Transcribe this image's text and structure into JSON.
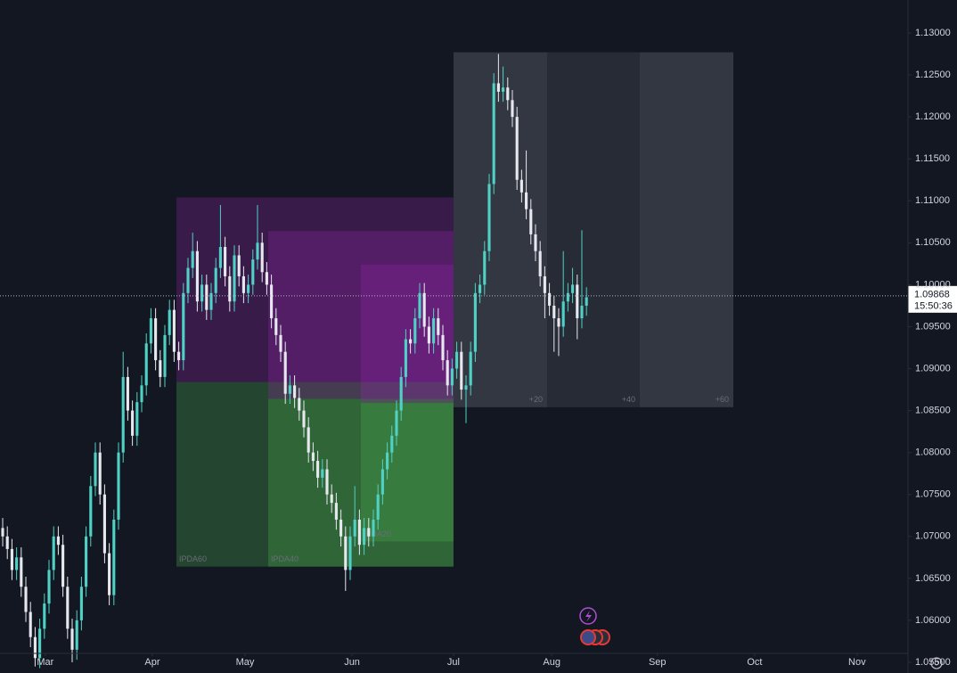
{
  "chart_data": {
    "type": "candlestick",
    "up_color": "#4fd1c5",
    "down_color": "#e6e8ee",
    "ylim": [
      1.05606,
      1.13393
    ],
    "xlim": [
      -0.58,
      195.2
    ],
    "yticks": [
      {
        "value": 1.13,
        "label": "1.13000"
      },
      {
        "value": 1.125,
        "label": "1.12500"
      },
      {
        "value": 1.12,
        "label": "1.12000"
      },
      {
        "value": 1.115,
        "label": "1.11500"
      },
      {
        "value": 1.11,
        "label": "1.11000"
      },
      {
        "value": 1.105,
        "label": "1.10500"
      },
      {
        "value": 1.1,
        "label": "1.10000"
      },
      {
        "value": 1.095,
        "label": "1.09500"
      },
      {
        "value": 1.09,
        "label": "1.09000"
      },
      {
        "value": 1.085,
        "label": "1.08500"
      },
      {
        "value": 1.08,
        "label": "1.08000"
      },
      {
        "value": 1.075,
        "label": "1.07500"
      },
      {
        "value": 1.07,
        "label": "1.07000"
      },
      {
        "value": 1.065,
        "label": "1.06500"
      },
      {
        "value": 1.06,
        "label": "1.06000"
      },
      {
        "value": 1.055,
        "label": "1.05500"
      }
    ],
    "xticks": [
      {
        "value": 9.2,
        "label": "Mar"
      },
      {
        "value": 32.3,
        "label": "Apr"
      },
      {
        "value": 52.3,
        "label": "May"
      },
      {
        "value": 75.4,
        "label": "Jun"
      },
      {
        "value": 97.3,
        "label": "Jul"
      },
      {
        "value": 118.5,
        "label": "Aug"
      },
      {
        "value": 141.3,
        "label": "Sep"
      },
      {
        "value": 162.3,
        "label": "Oct"
      },
      {
        "value": 184.4,
        "label": "Nov"
      }
    ],
    "last_price": 1.09868,
    "countdown": "15:50:36",
    "zones": [
      {
        "label": "IPDA60",
        "high": 1.1104,
        "low": 1.0664,
        "start": 37.5,
        "end": 97.3
      },
      {
        "label": "IPDA40",
        "high": 1.1064,
        "low": 1.0664,
        "start": 57.3,
        "end": 97.3
      },
      {
        "label": "IPDA20",
        "high": 1.1024,
        "low": 1.0694,
        "start": 77.3,
        "end": 97.3
      }
    ],
    "projection": {
      "high": 1.1277,
      "low": 1.0854,
      "segments": [
        {
          "label": "+20",
          "start": 97.3,
          "end": 117.5
        },
        {
          "label": "+40",
          "start": 117.5,
          "end": 137.5
        },
        {
          "label": "+60",
          "start": 137.5,
          "end": 157.7
        }
      ]
    },
    "ohlc": [
      [
        1.071,
        1.0722,
        1.0688,
        1.07
      ],
      [
        1.07,
        1.0712,
        1.0673,
        1.0685
      ],
      [
        1.0685,
        1.0697,
        1.0648,
        1.066
      ],
      [
        1.066,
        1.0687,
        1.0648,
        1.0675
      ],
      [
        1.0675,
        1.0687,
        1.0628,
        1.064
      ],
      [
        1.064,
        1.0652,
        1.0598,
        1.061
      ],
      [
        1.061,
        1.0622,
        1.0568,
        1.058
      ],
      [
        1.058,
        1.0592,
        1.0545,
        1.0555
      ],
      [
        1.0555,
        1.0602,
        1.0543,
        1.059
      ],
      [
        1.059,
        1.0632,
        1.0578,
        1.062
      ],
      [
        1.062,
        1.0672,
        1.0608,
        1.066
      ],
      [
        1.066,
        1.0712,
        1.0648,
        1.07
      ],
      [
        1.07,
        1.0712,
        1.0678,
        1.069
      ],
      [
        1.069,
        1.0702,
        1.0628,
        1.064
      ],
      [
        1.064,
        1.0652,
        1.0578,
        1.059
      ],
      [
        1.059,
        1.0602,
        1.055,
        1.0565
      ],
      [
        1.0565,
        1.0612,
        1.0553,
        1.06
      ],
      [
        1.06,
        1.0652,
        1.0588,
        1.064
      ],
      [
        1.064,
        1.0712,
        1.0628,
        1.07
      ],
      [
        1.07,
        1.0772,
        1.0688,
        1.076
      ],
      [
        1.076,
        1.0812,
        1.0748,
        1.08
      ],
      [
        1.08,
        1.0812,
        1.0738,
        1.075
      ],
      [
        1.075,
        1.0762,
        1.0668,
        1.068
      ],
      [
        1.068,
        1.0692,
        1.0618,
        1.063
      ],
      [
        1.063,
        1.0732,
        1.0618,
        1.072
      ],
      [
        1.072,
        1.0812,
        1.0708,
        1.08
      ],
      [
        1.08,
        1.092,
        1.0788,
        1.089
      ],
      [
        1.089,
        1.0902,
        1.0838,
        1.085
      ],
      [
        1.085,
        1.0862,
        1.0808,
        1.082
      ],
      [
        1.082,
        1.0872,
        1.0808,
        1.086
      ],
      [
        1.086,
        1.0892,
        1.0848,
        1.088
      ],
      [
        1.088,
        1.0942,
        1.0868,
        1.093
      ],
      [
        1.093,
        1.0972,
        1.0918,
        1.096
      ],
      [
        1.096,
        1.0972,
        1.0898,
        1.091
      ],
      [
        1.091,
        1.0922,
        1.0878,
        1.089
      ],
      [
        1.089,
        1.0952,
        1.0878,
        1.094
      ],
      [
        1.094,
        1.0982,
        1.0928,
        1.097
      ],
      [
        1.097,
        1.0982,
        1.0908,
        1.092
      ],
      [
        1.092,
        1.0932,
        1.0898,
        1.091
      ],
      [
        1.091,
        1.1002,
        1.0898,
        1.099
      ],
      [
        1.099,
        1.1032,
        1.0978,
        1.102
      ],
      [
        1.102,
        1.1062,
        1.1008,
        1.104
      ],
      [
        1.104,
        1.1052,
        1.0968,
        1.098
      ],
      [
        1.098,
        1.1012,
        1.0968,
        1.1
      ],
      [
        1.1,
        1.1012,
        1.0958,
        1.097
      ],
      [
        1.097,
        1.1002,
        1.0958,
        1.099
      ],
      [
        1.099,
        1.1032,
        1.0978,
        1.102
      ],
      [
        1.102,
        1.1095,
        1.1008,
        1.1045
      ],
      [
        1.1045,
        1.1057,
        1.0998,
        1.101
      ],
      [
        1.101,
        1.1022,
        1.0968,
        1.098
      ],
      [
        1.098,
        1.1047,
        1.0968,
        1.1035
      ],
      [
        1.1035,
        1.1047,
        1.0998,
        1.101
      ],
      [
        1.101,
        1.1022,
        1.0978,
        1.099
      ],
      [
        1.099,
        1.1012,
        1.0978,
        1.1
      ],
      [
        1.1,
        1.1042,
        1.0988,
        1.103
      ],
      [
        1.103,
        1.1095,
        1.1018,
        1.105
      ],
      [
        1.105,
        1.1062,
        1.1003,
        1.1015
      ],
      [
        1.1015,
        1.1027,
        1.0988,
        1.1
      ],
      [
        1.1,
        1.1012,
        1.0948,
        1.096
      ],
      [
        1.096,
        1.0972,
        1.0928,
        1.094
      ],
      [
        1.094,
        1.0952,
        1.0908,
        1.092
      ],
      [
        1.092,
        1.0932,
        1.0858,
        1.087
      ],
      [
        1.087,
        1.0892,
        1.0858,
        1.088
      ],
      [
        1.088,
        1.0892,
        1.0853,
        1.0865
      ],
      [
        1.0865,
        1.0877,
        1.0838,
        1.085
      ],
      [
        1.085,
        1.0862,
        1.0818,
        1.083
      ],
      [
        1.083,
        1.0842,
        1.0788,
        1.08
      ],
      [
        1.08,
        1.0812,
        1.0778,
        1.079
      ],
      [
        1.079,
        1.0802,
        1.0758,
        1.077
      ],
      [
        1.077,
        1.0792,
        1.0758,
        1.078
      ],
      [
        1.078,
        1.0792,
        1.0738,
        1.075
      ],
      [
        1.075,
        1.0762,
        1.0728,
        1.074
      ],
      [
        1.074,
        1.0752,
        1.0708,
        1.072
      ],
      [
        1.072,
        1.0732,
        1.0688,
        1.07
      ],
      [
        1.07,
        1.0712,
        1.0635,
        1.066
      ],
      [
        1.066,
        1.0712,
        1.0648,
        1.07
      ],
      [
        1.07,
        1.076,
        1.0688,
        1.072
      ],
      [
        1.072,
        1.0732,
        1.0678,
        1.069
      ],
      [
        1.069,
        1.0722,
        1.0678,
        1.071
      ],
      [
        1.071,
        1.0722,
        1.0688,
        1.07
      ],
      [
        1.07,
        1.0732,
        1.0688,
        1.072
      ],
      [
        1.072,
        1.0762,
        1.0708,
        1.075
      ],
      [
        1.075,
        1.0792,
        1.0738,
        1.078
      ],
      [
        1.078,
        1.0812,
        1.0768,
        1.08
      ],
      [
        1.08,
        1.0832,
        1.0788,
        1.082
      ],
      [
        1.082,
        1.0862,
        1.0808,
        1.085
      ],
      [
        1.085,
        1.0902,
        1.0838,
        1.089
      ],
      [
        1.089,
        1.0947,
        1.0878,
        1.0935
      ],
      [
        1.0935,
        1.0947,
        1.0918,
        1.093
      ],
      [
        1.093,
        1.0972,
        1.0918,
        1.096
      ],
      [
        1.096,
        1.1002,
        1.0948,
        1.099
      ],
      [
        1.099,
        1.1002,
        1.0938,
        1.095
      ],
      [
        1.095,
        1.0962,
        1.0918,
        1.093
      ],
      [
        1.093,
        1.0972,
        1.0918,
        1.096
      ],
      [
        1.096,
        1.0972,
        1.0928,
        1.094
      ],
      [
        1.094,
        1.0952,
        1.0898,
        1.091
      ],
      [
        1.091,
        1.0922,
        1.0868,
        1.088
      ],
      [
        1.088,
        1.0912,
        1.0868,
        1.09
      ],
      [
        1.09,
        1.0932,
        1.0888,
        1.092
      ],
      [
        1.092,
        1.0932,
        1.0863,
        1.0875
      ],
      [
        1.0875,
        1.0892,
        1.0835,
        1.088
      ],
      [
        1.088,
        1.0932,
        1.0868,
        1.092
      ],
      [
        1.092,
        1.1002,
        1.0908,
        1.099
      ],
      [
        1.099,
        1.1012,
        1.0978,
        1.1
      ],
      [
        1.1,
        1.1052,
        1.0988,
        1.104
      ],
      [
        1.104,
        1.1132,
        1.1028,
        1.112
      ],
      [
        1.112,
        1.1252,
        1.1108,
        1.124
      ],
      [
        1.124,
        1.1275,
        1.1218,
        1.123
      ],
      [
        1.123,
        1.126,
        1.1218,
        1.1235
      ],
      [
        1.1235,
        1.1247,
        1.1208,
        1.122
      ],
      [
        1.122,
        1.1232,
        1.1188,
        1.12
      ],
      [
        1.12,
        1.1212,
        1.1113,
        1.1125
      ],
      [
        1.1125,
        1.1137,
        1.1098,
        1.111
      ],
      [
        1.111,
        1.116,
        1.1078,
        1.109
      ],
      [
        1.109,
        1.1102,
        1.1048,
        1.106
      ],
      [
        1.106,
        1.1072,
        1.1028,
        1.104
      ],
      [
        1.104,
        1.1052,
        1.0998,
        1.101
      ],
      [
        1.101,
        1.1022,
        1.096,
        1.099
      ],
      [
        1.099,
        1.1002,
        1.0963,
        1.0975
      ],
      [
        1.0975,
        1.0987,
        1.092,
        1.096
      ],
      [
        1.096,
        1.0972,
        1.0915,
        1.095
      ],
      [
        1.095,
        1.104,
        1.0938,
        1.098
      ],
      [
        1.098,
        1.1002,
        1.0968,
        1.099
      ],
      [
        1.099,
        1.102,
        1.0978,
        1.1
      ],
      [
        1.1,
        1.1012,
        1.0935,
        1.096
      ],
      [
        1.096,
        1.1065,
        1.0948,
        1.0975
      ],
      [
        1.0975,
        1.0997,
        1.0963,
        1.0985
      ]
    ]
  }
}
